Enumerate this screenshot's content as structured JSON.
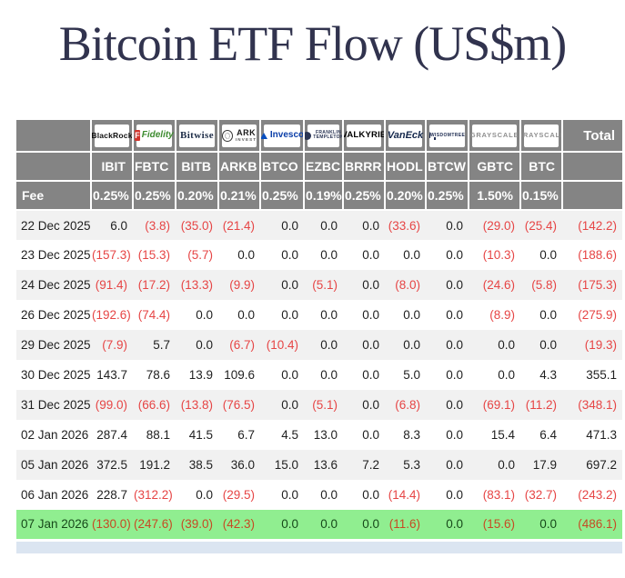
{
  "title": "Bitcoin ETF Flow (US$m)",
  "colors": {
    "header_bg": "#848484",
    "row_alt_bg": "#f1f1f1",
    "highlight_row_bg": "#90ee90",
    "partial_row_bg": "#dbe5f1",
    "negative_text": "#e64545",
    "negative_on_highlight": "#c64a24",
    "title_text": "#31334e"
  },
  "table": {
    "fee_label": "Fee",
    "total_label": "Total",
    "providers": [
      {
        "id": "blackrock",
        "brand": "BlackRock",
        "icon": null,
        "ticker": "IBIT",
        "fee": "0.25%"
      },
      {
        "id": "fidelity",
        "brand": "Fidelity",
        "icon": "f-square",
        "ticker": "FBTC",
        "fee": "0.25%"
      },
      {
        "id": "bitwise",
        "brand": "Bitwise",
        "icon": null,
        "ticker": "BITB",
        "fee": "0.20%"
      },
      {
        "id": "ark",
        "brand": "ARK INVEST",
        "icon": "ring",
        "logo_lines": [
          "ARK",
          "INVEST"
        ],
        "ticker": "ARKB",
        "fee": "0.21%"
      },
      {
        "id": "invesco",
        "brand": "Invesco",
        "icon": "triangle",
        "ticker": "BTCO",
        "fee": "0.25%"
      },
      {
        "id": "franklin",
        "brand": "Franklin Templeton",
        "icon": "emblem",
        "logo_lines": [
          "FRANKLIN",
          "TEMPLETON"
        ],
        "ticker": "EZBC",
        "fee": "0.19%"
      },
      {
        "id": "valkyrie",
        "brand": "VALKYRIE",
        "icon": null,
        "ticker": "BRRR",
        "fee": "0.25%"
      },
      {
        "id": "vaneck",
        "brand": "VanEck",
        "icon": null,
        "ticker": "HODL",
        "fee": "0.20%"
      },
      {
        "id": "wisdomtree",
        "brand": "WisdomTree",
        "icon": "tree",
        "logo_lines": [
          "",
          "WISDOMTREE"
        ],
        "ticker": "BTCW",
        "fee": "0.25%"
      },
      {
        "id": "grayscale",
        "brand": "GRAYSCALE",
        "icon": null,
        "ticker": "GBTC",
        "fee": "1.50%"
      },
      {
        "id": "grayscale-mini",
        "brand": "GRAYSCALE",
        "icon": null,
        "ticker": "BTC",
        "fee": "0.15%"
      }
    ],
    "rows": [
      {
        "date": "22 Dec 2025",
        "values": [
          "6.0",
          "(3.8)",
          "(35.0)",
          "(21.4)",
          "0.0",
          "0.0",
          "0.0",
          "(33.6)",
          "0.0",
          "(29.0)",
          "(25.4)"
        ],
        "total": "(142.2)",
        "highlight": false
      },
      {
        "date": "23 Dec 2025",
        "values": [
          "(157.3)",
          "(15.3)",
          "(5.7)",
          "0.0",
          "0.0",
          "0.0",
          "0.0",
          "0.0",
          "0.0",
          "(10.3)",
          "0.0"
        ],
        "total": "(188.6)",
        "highlight": false
      },
      {
        "date": "24 Dec 2025",
        "values": [
          "(91.4)",
          "(17.2)",
          "(13.3)",
          "(9.9)",
          "0.0",
          "(5.1)",
          "0.0",
          "(8.0)",
          "0.0",
          "(24.6)",
          "(5.8)"
        ],
        "total": "(175.3)",
        "highlight": false
      },
      {
        "date": "26 Dec 2025",
        "values": [
          "(192.6)",
          "(74.4)",
          "0.0",
          "0.0",
          "0.0",
          "0.0",
          "0.0",
          "0.0",
          "0.0",
          "(8.9)",
          "0.0"
        ],
        "total": "(275.9)",
        "highlight": false
      },
      {
        "date": "29 Dec 2025",
        "values": [
          "(7.9)",
          "5.7",
          "0.0",
          "(6.7)",
          "(10.4)",
          "0.0",
          "0.0",
          "0.0",
          "0.0",
          "0.0",
          "0.0"
        ],
        "total": "(19.3)",
        "highlight": false
      },
      {
        "date": "30 Dec 2025",
        "values": [
          "143.7",
          "78.6",
          "13.9",
          "109.6",
          "0.0",
          "0.0",
          "0.0",
          "5.0",
          "0.0",
          "0.0",
          "4.3"
        ],
        "total": "355.1",
        "highlight": false
      },
      {
        "date": "31 Dec 2025",
        "values": [
          "(99.0)",
          "(66.6)",
          "(13.8)",
          "(76.5)",
          "0.0",
          "(5.1)",
          "0.0",
          "(6.8)",
          "0.0",
          "(69.1)",
          "(11.2)"
        ],
        "total": "(348.1)",
        "highlight": false
      },
      {
        "date": "02 Jan 2026",
        "values": [
          "287.4",
          "88.1",
          "41.5",
          "6.7",
          "4.5",
          "13.0",
          "0.0",
          "8.3",
          "0.0",
          "15.4",
          "6.4"
        ],
        "total": "471.3",
        "highlight": false
      },
      {
        "date": "05 Jan 2026",
        "values": [
          "372.5",
          "191.2",
          "38.5",
          "36.0",
          "15.0",
          "13.6",
          "7.2",
          "5.3",
          "0.0",
          "0.0",
          "17.9"
        ],
        "total": "697.2",
        "highlight": false
      },
      {
        "date": "06 Jan 2026",
        "values": [
          "228.7",
          "(312.2)",
          "0.0",
          "(29.5)",
          "0.0",
          "0.0",
          "0.0",
          "(14.4)",
          "0.0",
          "(83.1)",
          "(32.7)"
        ],
        "total": "(243.2)",
        "highlight": false
      },
      {
        "date": "07 Jan 2026",
        "values": [
          "(130.0)",
          "(247.6)",
          "(39.0)",
          "(42.3)",
          "0.0",
          "0.0",
          "0.0",
          "(11.6)",
          "0.0",
          "(15.6)",
          "0.0"
        ],
        "total": "(486.1)",
        "highlight": true
      }
    ]
  }
}
